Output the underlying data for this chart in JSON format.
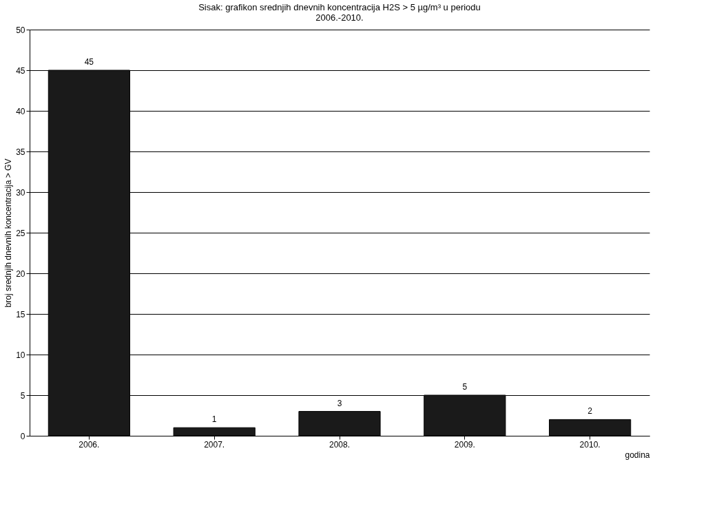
{
  "chart_data": {
    "type": "bar",
    "title": "Sisak: grafikon srednjih dnevnih koncentracija H2S > 5 µg/m³ u periodu 2006.-2010.",
    "xlabel": "godina",
    "ylabel": "broj srednjih dnevnih koncentracija > GV",
    "categories": [
      "2006.",
      "2007.",
      "2008.",
      "2009.",
      "2010."
    ],
    "values": [
      45,
      1,
      3,
      5,
      2
    ],
    "color": "#1a1a1a",
    "ylim": [
      0,
      50
    ],
    "yticks": [
      0,
      5,
      10,
      15,
      20,
      25,
      30,
      35,
      40,
      45,
      50
    ],
    "grid": "y",
    "data_labels": true
  }
}
